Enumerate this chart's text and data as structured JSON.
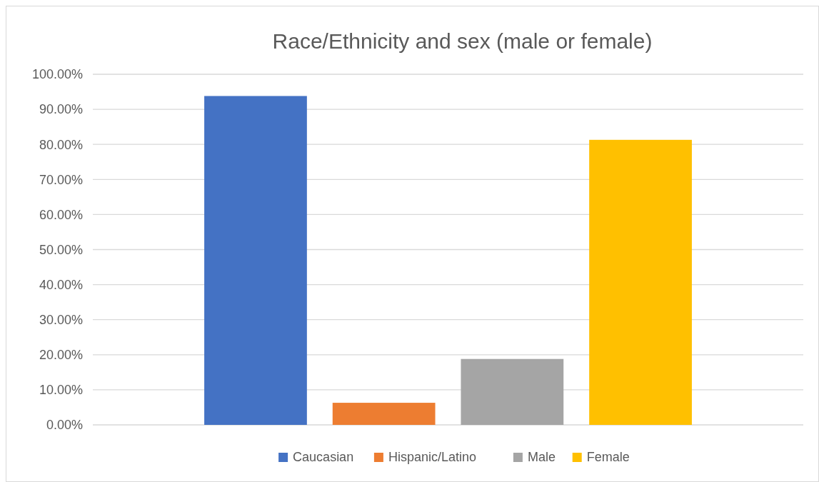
{
  "chart_data": {
    "type": "bar",
    "title": "Race/Ethnicity and sex (male or female)",
    "categories": [
      null
    ],
    "series": [
      {
        "name": "Caucasian",
        "color": "#4472c4",
        "values": [
          93.8
        ]
      },
      {
        "name": "Hispanic/Latino",
        "color": "#ed7d31",
        "values": [
          6.3
        ]
      },
      {
        "name": "Male",
        "color": "#a5a5a5",
        "values": [
          18.8
        ]
      },
      {
        "name": "Female",
        "color": "#ffc000",
        "values": [
          81.3
        ]
      }
    ],
    "ylim": [
      0,
      100
    ],
    "yticks": [
      {
        "value": 0,
        "label": "0.00%"
      },
      {
        "value": 10,
        "label": "10.00%"
      },
      {
        "value": 20,
        "label": "20.00%"
      },
      {
        "value": 30,
        "label": "30.00%"
      },
      {
        "value": 40,
        "label": "40.00%"
      },
      {
        "value": 50,
        "label": "50.00%"
      },
      {
        "value": 60,
        "label": "60.00%"
      },
      {
        "value": 70,
        "label": "70.00%"
      },
      {
        "value": 80,
        "label": "80.00%"
      },
      {
        "value": 90,
        "label": "90.00%"
      },
      {
        "value": 100,
        "label": "100.00%"
      }
    ],
    "grid": "y",
    "legend": "bottom"
  }
}
